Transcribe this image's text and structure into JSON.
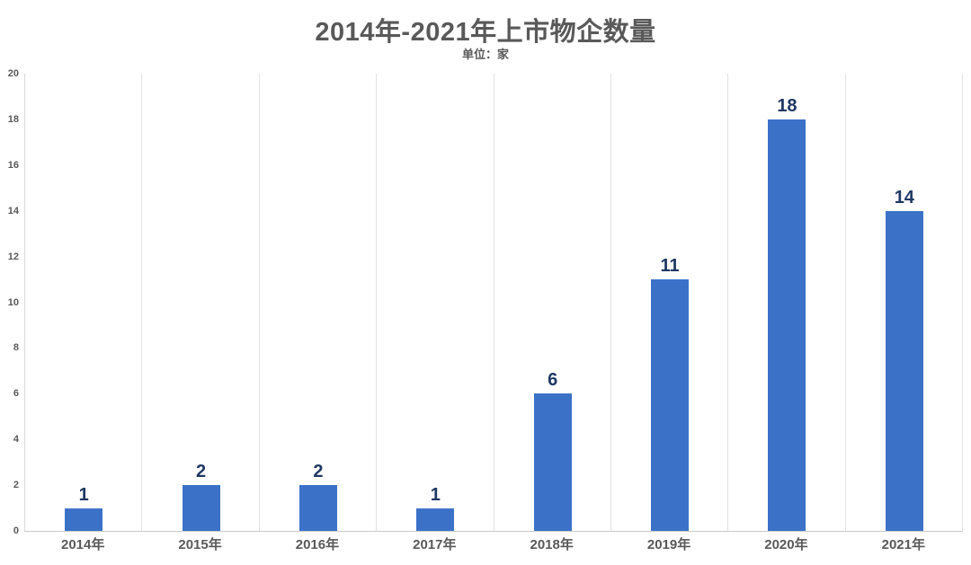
{
  "chart_data": {
    "type": "bar",
    "title": "2014年-2021年上市物企数量",
    "subtitle": "单位：家",
    "categories": [
      "2014年",
      "2015年",
      "2016年",
      "2017年",
      "2018年",
      "2019年",
      "2020年",
      "2021年"
    ],
    "values": [
      1,
      2,
      2,
      1,
      6,
      11,
      18,
      14
    ],
    "xlabel": "",
    "ylabel": "",
    "ylim": [
      0,
      20
    ],
    "yticks": [
      0,
      2,
      4,
      6,
      8,
      10,
      12,
      14,
      16,
      18,
      20
    ],
    "grid": "vertical-only",
    "legend": "none",
    "data_labels": "above-bars",
    "colors": {
      "bar": "#3b72c8",
      "value_label": "#1f3864",
      "title_text": "#595959",
      "axis_text": "#595959",
      "gridline": "#e2e2e2",
      "axis_line": "#c9c9c9",
      "background": "#ffffff"
    }
  }
}
